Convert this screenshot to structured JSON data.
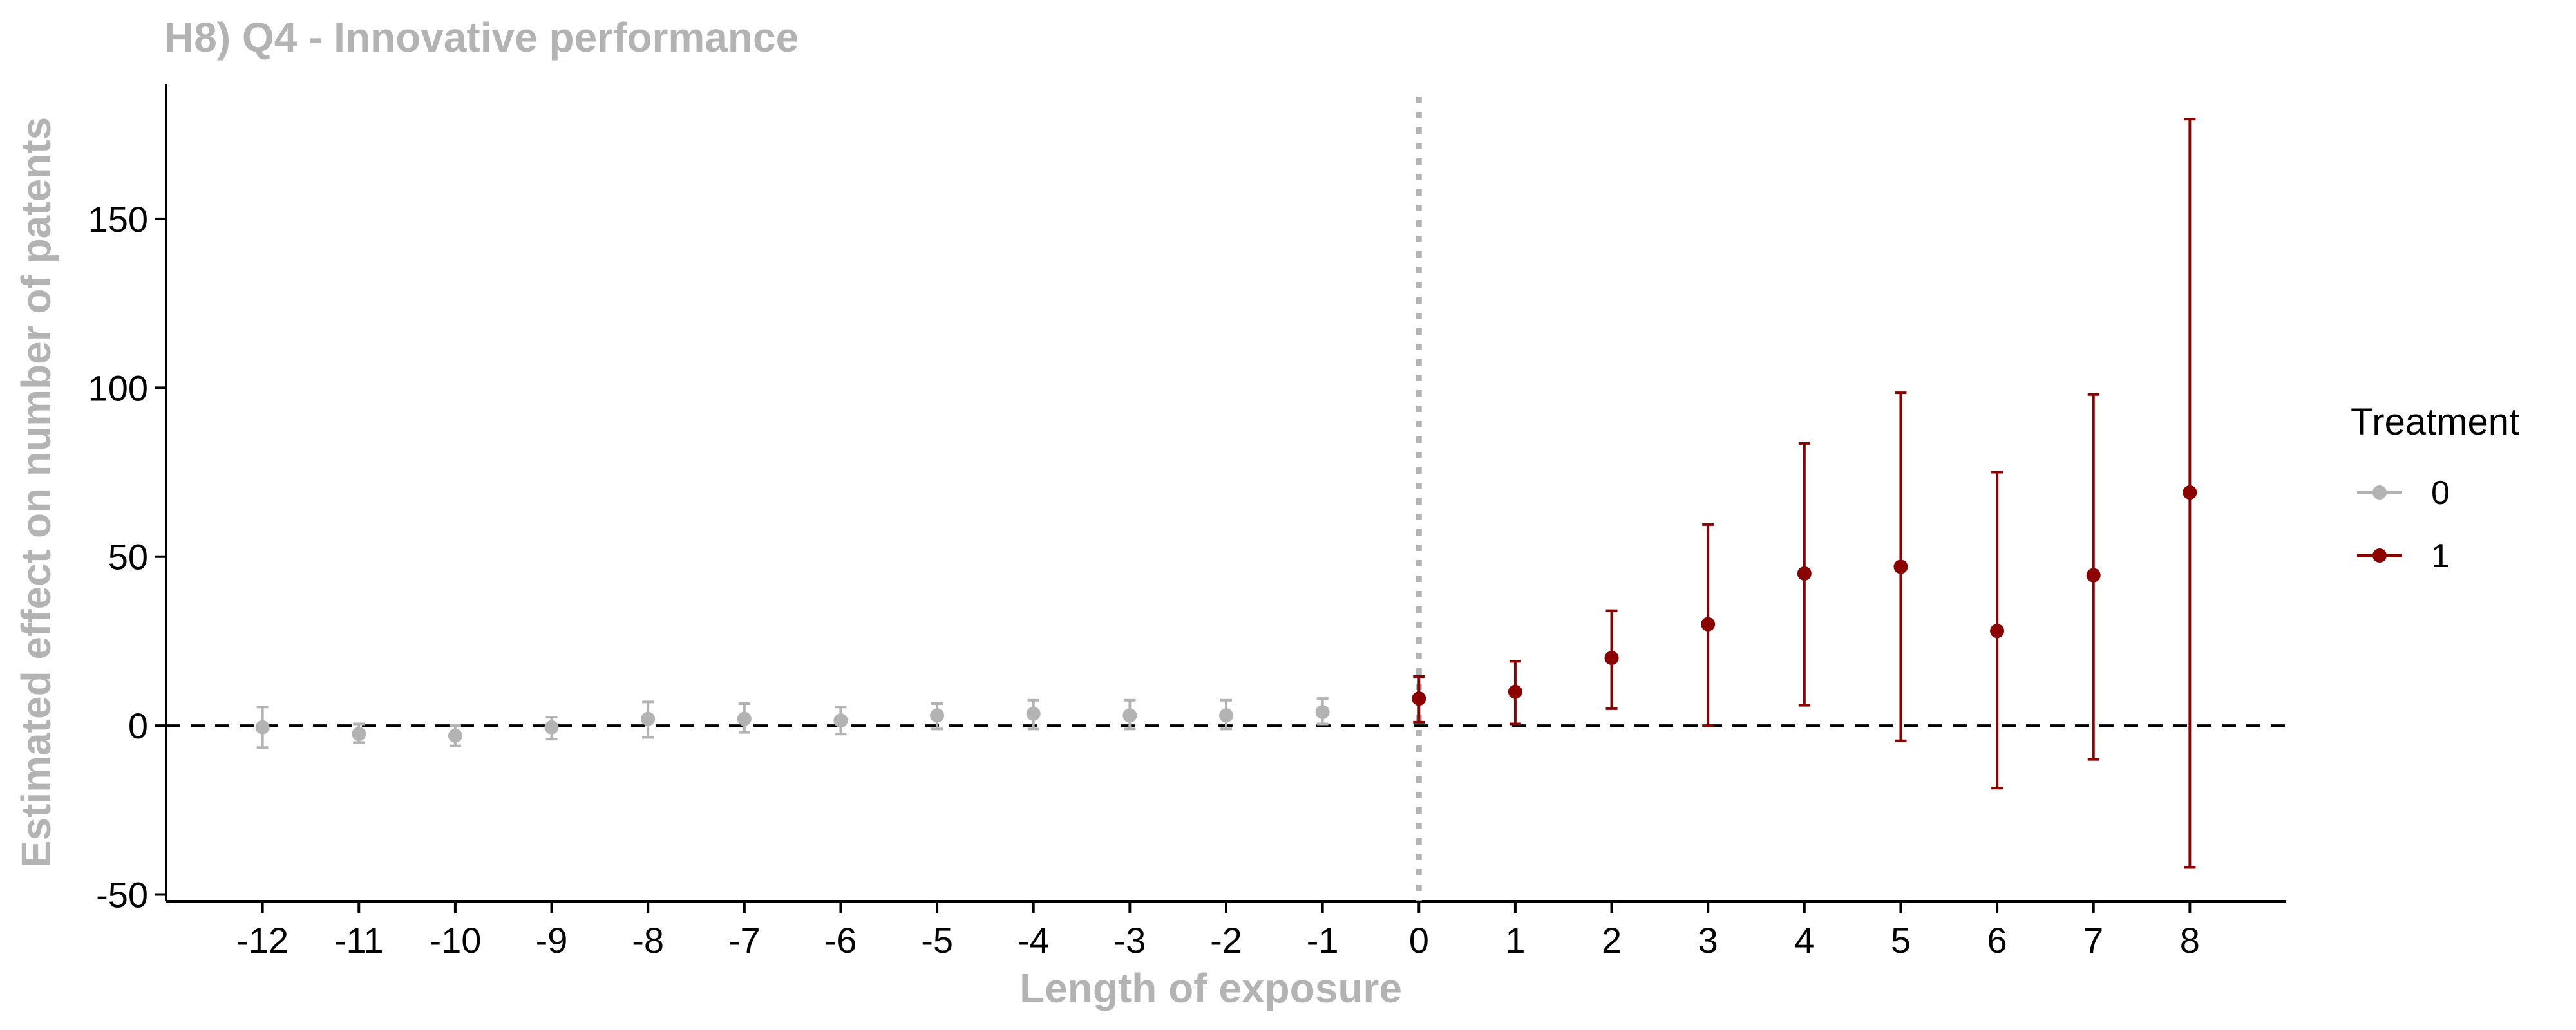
{
  "chart_data": {
    "type": "scatter",
    "title": "H8) Q4 - Innovative performance",
    "xlabel": "Length of exposure",
    "ylabel": "Estimated effect on number of patents",
    "x_ticks": [
      -12,
      -11,
      -10,
      -9,
      -8,
      -7,
      -6,
      -5,
      -4,
      -3,
      -2,
      -1,
      0,
      1,
      2,
      3,
      4,
      5,
      6,
      7,
      8
    ],
    "y_ticks": [
      -50,
      0,
      50,
      100,
      150
    ],
    "xlim": [
      -13,
      9
    ],
    "ylim": [
      -52,
      190
    ],
    "reference_lines": {
      "horizontal_y": 0,
      "vertical_x": 0
    },
    "grid": false,
    "legend": {
      "title": "Treatment",
      "position": "right",
      "entries": [
        {
          "label": "0",
          "color": "#b3b3b3"
        },
        {
          "label": "1",
          "color": "#8b0000"
        }
      ]
    },
    "series": [
      {
        "name": "0",
        "color": "#b3b3b3",
        "points": [
          {
            "x": -12,
            "y": -0.5,
            "lo": -6.5,
            "hi": 5.5
          },
          {
            "x": -11,
            "y": -2.5,
            "lo": -5,
            "hi": 0.5
          },
          {
            "x": -10,
            "y": -3,
            "lo": -6,
            "hi": 0
          },
          {
            "x": -9,
            "y": -0.5,
            "lo": -4,
            "hi": 2.5
          },
          {
            "x": -8,
            "y": 2,
            "lo": -3.5,
            "hi": 7
          },
          {
            "x": -7,
            "y": 2,
            "lo": -2,
            "hi": 6.5
          },
          {
            "x": -6,
            "y": 1.5,
            "lo": -2.5,
            "hi": 5.5
          },
          {
            "x": -5,
            "y": 3,
            "lo": -1,
            "hi": 6.5
          },
          {
            "x": -4,
            "y": 3.5,
            "lo": -1,
            "hi": 7.5
          },
          {
            "x": -3,
            "y": 3,
            "lo": -1,
            "hi": 7.5
          },
          {
            "x": -2,
            "y": 3,
            "lo": -1,
            "hi": 7.5
          },
          {
            "x": -1,
            "y": 4,
            "lo": 0.5,
            "hi": 8
          }
        ]
      },
      {
        "name": "1",
        "color": "#8b0000",
        "points": [
          {
            "x": 0,
            "y": 8,
            "lo": 1,
            "hi": 14.5
          },
          {
            "x": 1,
            "y": 10,
            "lo": 0.5,
            "hi": 19
          },
          {
            "x": 2,
            "y": 20,
            "lo": 5,
            "hi": 34
          },
          {
            "x": 3,
            "y": 30,
            "lo": 0,
            "hi": 59.5
          },
          {
            "x": 4,
            "y": 45,
            "lo": 6,
            "hi": 83.5
          },
          {
            "x": 5,
            "y": 47,
            "lo": -4.5,
            "hi": 98.5
          },
          {
            "x": 6,
            "y": 28,
            "lo": -18.5,
            "hi": 75
          },
          {
            "x": 7,
            "y": 44.5,
            "lo": -10,
            "hi": 98
          },
          {
            "x": 8,
            "y": 69,
            "lo": -42,
            "hi": 179.5
          }
        ]
      }
    ],
    "colors": {
      "axis_text_muted": "#b3b3b3",
      "axis_line": "#000000"
    }
  }
}
